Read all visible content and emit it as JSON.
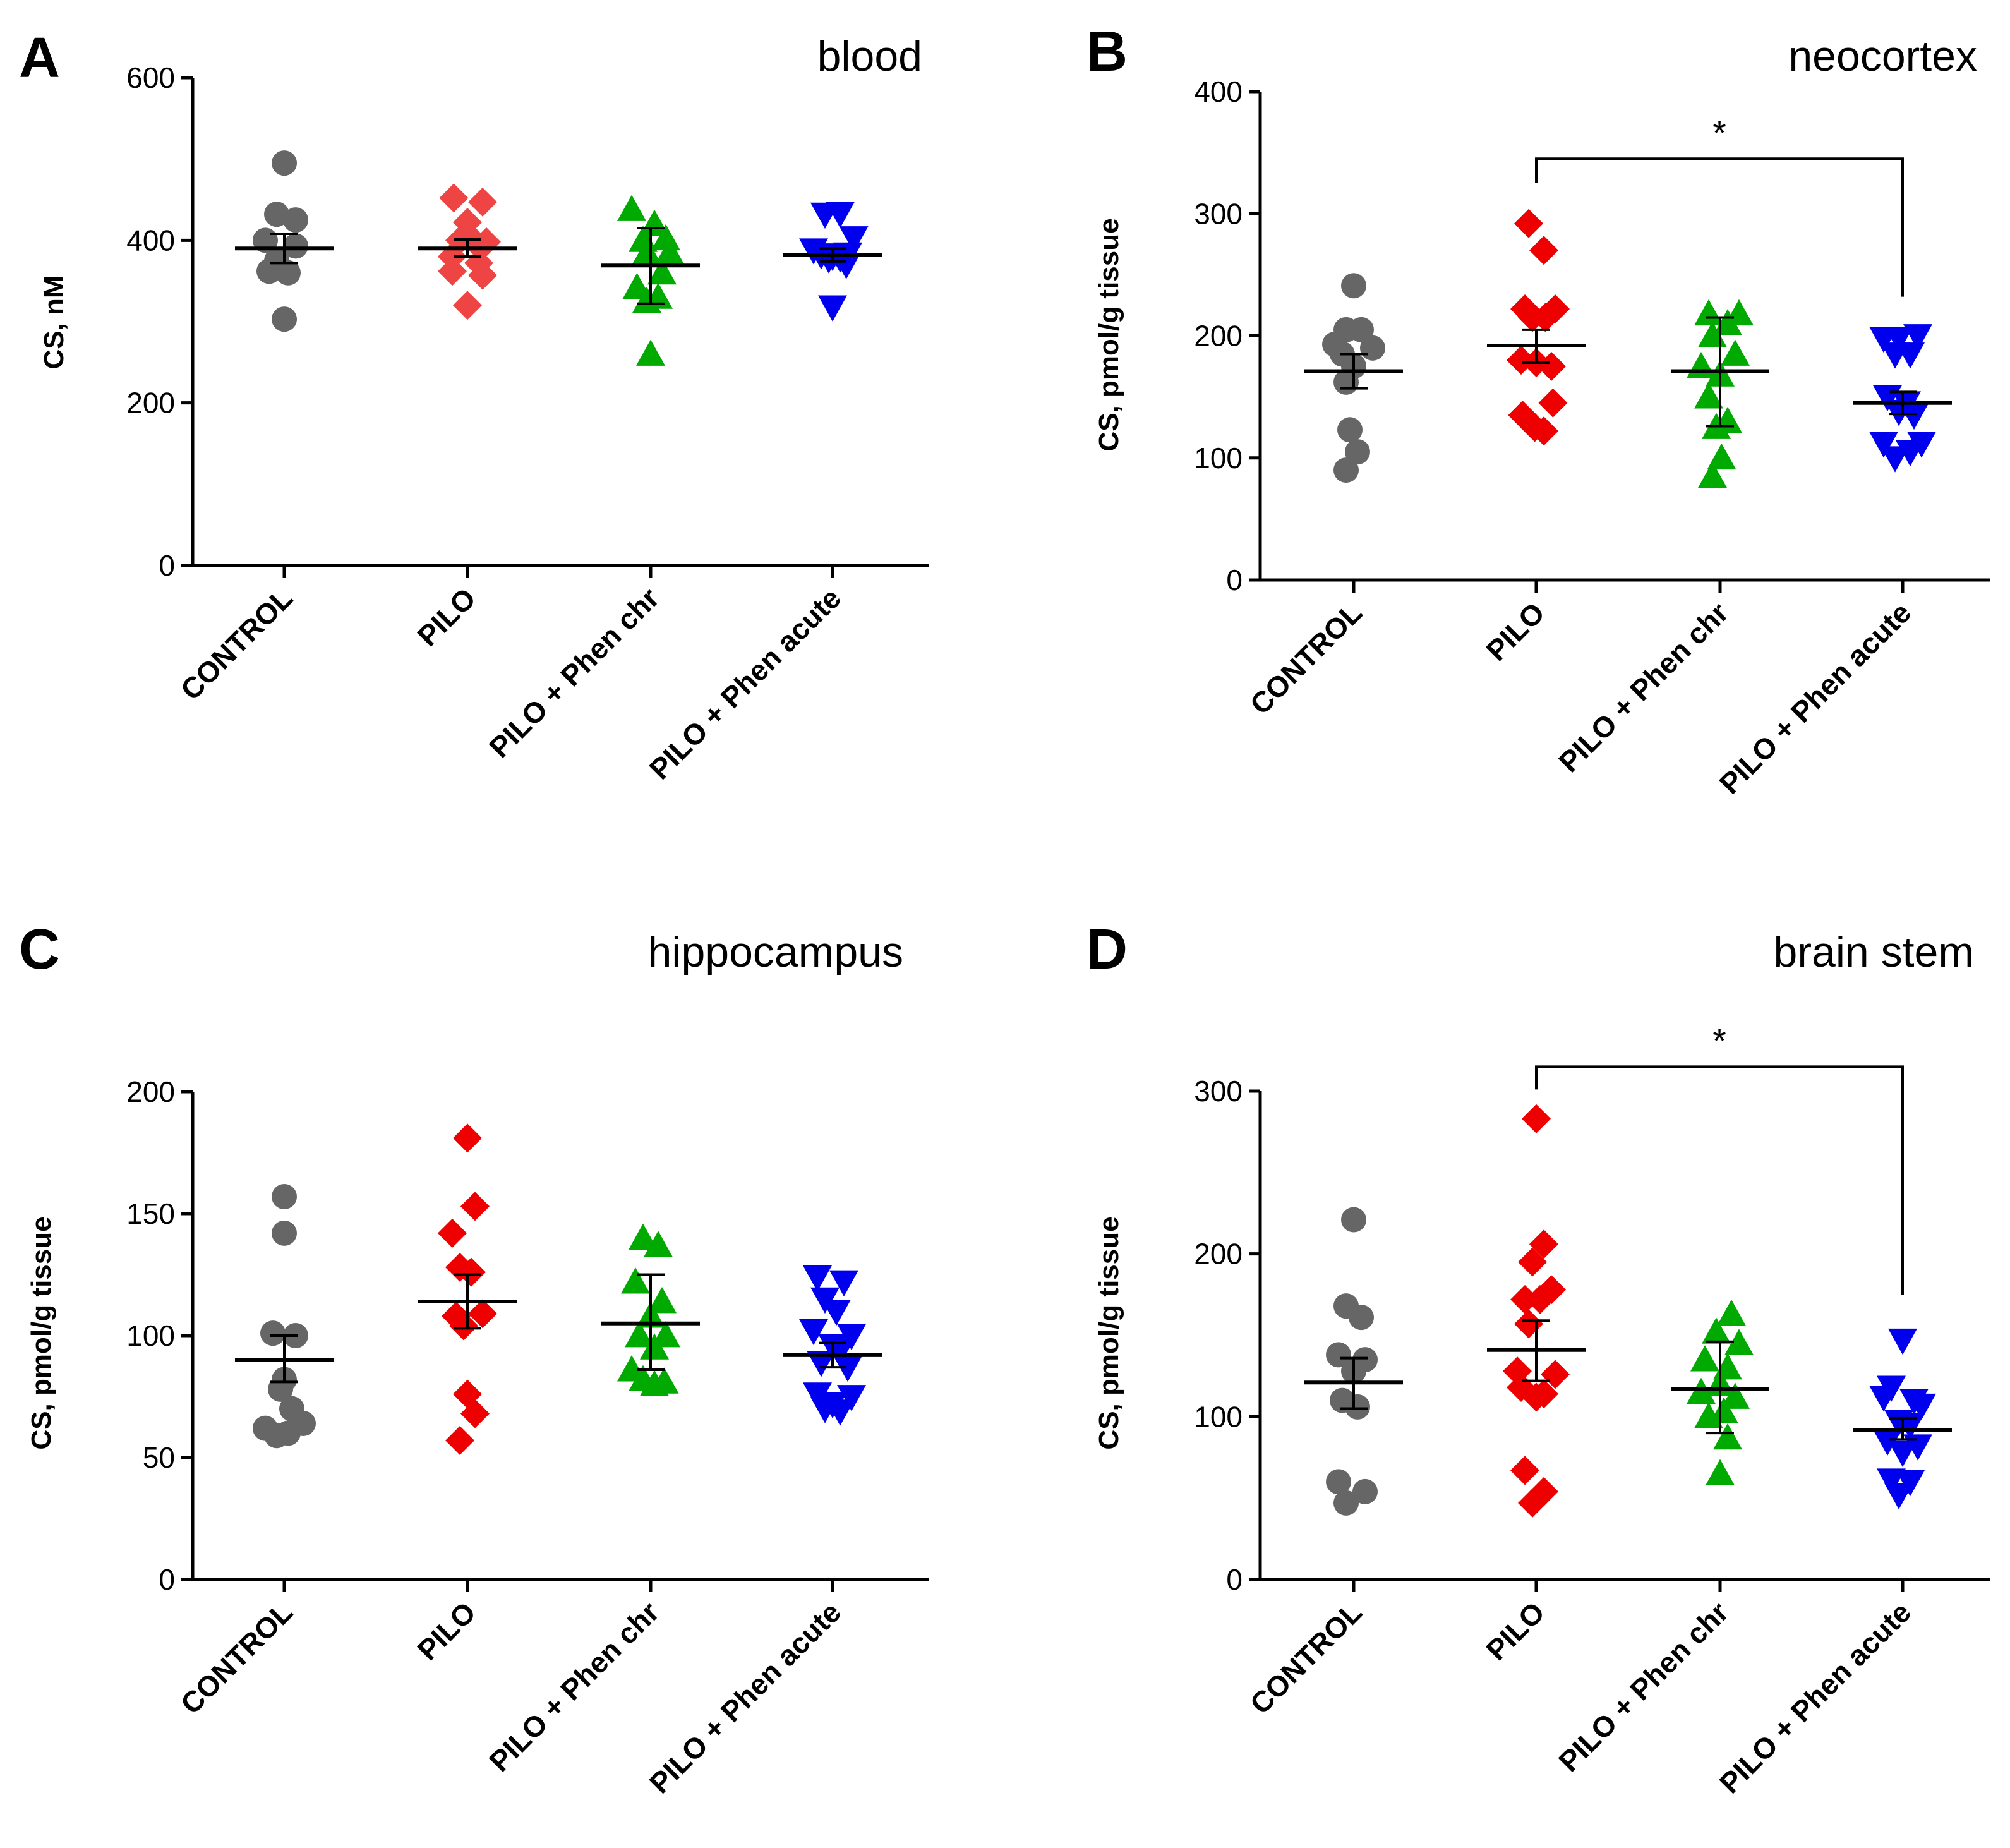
{
  "chart_data": [
    {
      "panel": "A",
      "title": "blood",
      "type": "scatter",
      "ylabel": "CS, nM",
      "ylim": [
        0,
        600
      ],
      "yticks": [
        0,
        200,
        400,
        600
      ],
      "categories": [
        "CONTROL",
        "PILO",
        "PILO + Phen chr",
        "PILO + Phen acute"
      ],
      "series": [
        {
          "name": "CONTROL",
          "color": "#666666",
          "marker": "circle",
          "mean": 390,
          "sem": [
            372,
            408
          ],
          "points": [
            [
              0,
              495
            ],
            [
              -0.1,
              432
            ],
            [
              0.15,
              425
            ],
            [
              -0.25,
              400
            ],
            [
              0.15,
              393
            ],
            [
              -0.1,
              375
            ],
            [
              0.05,
              360
            ],
            [
              -0.2,
              362
            ],
            [
              0,
              303
            ]
          ]
        },
        {
          "name": "PILO",
          "color": "#ee4444",
          "marker": "diamond",
          "mean": 390,
          "sem": [
            380,
            401
          ],
          "points": [
            [
              -0.18,
              452
            ],
            [
              0.2,
              447
            ],
            [
              0,
              422
            ],
            [
              -0.1,
              400
            ],
            [
              0.1,
              398
            ],
            [
              0.25,
              398
            ],
            [
              -0.2,
              380
            ],
            [
              0.15,
              372
            ],
            [
              -0.2,
              362
            ],
            [
              0.2,
              357
            ],
            [
              0,
              320
            ]
          ]
        },
        {
          "name": "PILO + Phen chr",
          "color": "#00aa00",
          "marker": "triangle",
          "mean": 369,
          "sem": [
            322,
            415
          ],
          "points": [
            [
              -0.25,
              438
            ],
            [
              0.05,
              420
            ],
            [
              -0.1,
              400
            ],
            [
              0.2,
              402
            ],
            [
              0.25,
              385
            ],
            [
              -0.05,
              385
            ],
            [
              0.15,
              360
            ],
            [
              -0.18,
              342
            ],
            [
              0.1,
              330
            ],
            [
              -0.05,
              325
            ],
            [
              0,
              260
            ]
          ]
        },
        {
          "name": "PILO + Phen acute",
          "color": "#0000ee",
          "marker": "triangle-down",
          "mean": 382,
          "sem": [
            374,
            390
          ],
          "points": [
            [
              -0.1,
              432
            ],
            [
              0.1,
              433
            ],
            [
              0.28,
              403
            ],
            [
              -0.25,
              388
            ],
            [
              -0.15,
              382
            ],
            [
              0.2,
              383
            ],
            [
              0,
              380
            ],
            [
              0.1,
              378
            ],
            [
              -0.05,
              377
            ],
            [
              0.18,
              370
            ],
            [
              0,
              318
            ]
          ]
        }
      ],
      "significance": null
    },
    {
      "panel": "B",
      "title": "neocortex",
      "type": "scatter",
      "ylabel": "CS, pmol/g tissue",
      "ylim": [
        0,
        400
      ],
      "yticks": [
        0,
        100,
        200,
        300,
        400
      ],
      "categories": [
        "CONTROL",
        "PILO",
        "PILO + Phen chr",
        "PILO + Phen acute"
      ],
      "series": [
        {
          "name": "CONTROL",
          "color": "#666666",
          "marker": "circle",
          "mean": 171,
          "sem": [
            157,
            185
          ],
          "points": [
            [
              0,
              241
            ],
            [
              -0.1,
              205
            ],
            [
              0.1,
              205
            ],
            [
              -0.25,
              193
            ],
            [
              0.25,
              190
            ],
            [
              -0.15,
              185
            ],
            [
              0,
              175
            ],
            [
              -0.1,
              162
            ],
            [
              -0.05,
              123
            ],
            [
              0.05,
              105
            ],
            [
              -0.1,
              90
            ]
          ]
        },
        {
          "name": "PILO",
          "color": "#ee0000",
          "marker": "diamond",
          "mean": 192,
          "sem": [
            178,
            205
          ],
          "points": [
            [
              -0.1,
              292
            ],
            [
              0.1,
              270
            ],
            [
              -0.15,
              222
            ],
            [
              0.25,
              222
            ],
            [
              -0.05,
              215
            ],
            [
              0.12,
              215
            ],
            [
              -0.2,
              180
            ],
            [
              0.2,
              175
            ],
            [
              0,
              178
            ],
            [
              -0.18,
              135
            ],
            [
              0.22,
              145
            ],
            [
              -0.02,
              125
            ],
            [
              0.1,
              122
            ]
          ]
        },
        {
          "name": "PILO + Phen chr",
          "color": "#00aa00",
          "marker": "triangle",
          "mean": 171,
          "sem": [
            126,
            215
          ],
          "points": [
            [
              -0.15,
              218
            ],
            [
              0.25,
              218
            ],
            [
              0.1,
              210
            ],
            [
              -0.1,
              200
            ],
            [
              0.2,
              185
            ],
            [
              -0.25,
              175
            ],
            [
              0,
              168
            ],
            [
              -0.15,
              150
            ],
            [
              0.1,
              130
            ],
            [
              -0.05,
              125
            ],
            [
              0.02,
              100
            ],
            [
              -0.1,
              85
            ]
          ]
        },
        {
          "name": "PILO + Phen acute",
          "color": "#0000ee",
          "marker": "triangle-down",
          "mean": 145,
          "sem": [
            136,
            154
          ],
          "points": [
            [
              -0.25,
              198
            ],
            [
              -0.05,
              198
            ],
            [
              0.2,
              200
            ],
            [
              0.1,
              185
            ],
            [
              -0.1,
              185
            ],
            [
              -0.2,
              150
            ],
            [
              0.05,
              145
            ],
            [
              -0.05,
              138
            ],
            [
              0.15,
              135
            ],
            [
              0.25,
              112
            ],
            [
              -0.25,
              112
            ],
            [
              0.1,
              105
            ],
            [
              -0.1,
              100
            ]
          ]
        }
      ],
      "significance": {
        "label": "*",
        "from": 1,
        "to": 3,
        "y": 345,
        "drop_left": 325,
        "drop_right": 232
      }
    },
    {
      "panel": "C",
      "title": "hippocampus",
      "type": "scatter",
      "ylabel": "CS, pmol/g tissue",
      "ylim": [
        0,
        200
      ],
      "yticks": [
        0,
        50,
        100,
        150,
        200
      ],
      "categories": [
        "CONTROL",
        "PILO",
        "PILO + Phen chr",
        "PILO + Phen acute"
      ],
      "series": [
        {
          "name": "CONTROL",
          "color": "#666666",
          "marker": "circle",
          "mean": 90,
          "sem": [
            81,
            100
          ],
          "points": [
            [
              0,
              157
            ],
            [
              0,
              142
            ],
            [
              -0.15,
              101
            ],
            [
              0.15,
              100
            ],
            [
              0,
              82
            ],
            [
              -0.05,
              78
            ],
            [
              0.1,
              70
            ],
            [
              -0.25,
              62
            ],
            [
              0.25,
              64
            ],
            [
              -0.1,
              59
            ],
            [
              0.05,
              60
            ]
          ]
        },
        {
          "name": "PILO",
          "color": "#ee0000",
          "marker": "diamond",
          "mean": 114,
          "sem": [
            103,
            125
          ],
          "points": [
            [
              0,
              181
            ],
            [
              0.1,
              153
            ],
            [
              -0.2,
              142
            ],
            [
              -0.1,
              128
            ],
            [
              0.05,
              126
            ],
            [
              0.2,
              109
            ],
            [
              -0.15,
              108
            ],
            [
              -0.05,
              104
            ],
            [
              0,
              76
            ],
            [
              0.1,
              68
            ],
            [
              -0.1,
              57
            ]
          ]
        },
        {
          "name": "PILO + Phen chr",
          "color": "#00aa00",
          "marker": "triangle",
          "mean": 105,
          "sem": [
            86,
            125
          ],
          "points": [
            [
              -0.1,
              140
            ],
            [
              0.1,
              137
            ],
            [
              -0.2,
              122
            ],
            [
              0.15,
              114
            ],
            [
              0,
              108
            ],
            [
              0.2,
              100
            ],
            [
              -0.15,
              100
            ],
            [
              0.05,
              95
            ],
            [
              -0.25,
              86
            ],
            [
              -0.1,
              82
            ],
            [
              0.05,
              80
            ],
            [
              0.18,
              81
            ]
          ]
        },
        {
          "name": "PILO + Phen acute",
          "color": "#0000ee",
          "marker": "triangle-down",
          "mean": 92,
          "sem": [
            87,
            97
          ],
          "points": [
            [
              -0.2,
              124
            ],
            [
              0.15,
              122
            ],
            [
              -0.1,
              115
            ],
            [
              0.05,
              110
            ],
            [
              -0.25,
              102
            ],
            [
              0.25,
              100
            ],
            [
              0,
              96
            ],
            [
              0.1,
              94
            ],
            [
              -0.15,
              89
            ],
            [
              0.2,
              87
            ],
            [
              -0.2,
              76
            ],
            [
              0.25,
              75
            ],
            [
              0,
              72
            ],
            [
              -0.1,
              70
            ],
            [
              0.1,
              69
            ]
          ]
        }
      ],
      "significance": null
    },
    {
      "panel": "D",
      "title": "brain stem",
      "type": "scatter",
      "ylabel": "CS, pmol/g tissue",
      "ylim": [
        0,
        300
      ],
      "yticks": [
        0,
        100,
        200,
        300
      ],
      "categories": [
        "CONTROL",
        "PILO",
        "PILO + Phen chr",
        "PILO + Phen acute"
      ],
      "series": [
        {
          "name": "CONTROL",
          "color": "#666666",
          "marker": "circle",
          "mean": 121,
          "sem": [
            105,
            136
          ],
          "points": [
            [
              0,
              221
            ],
            [
              -0.1,
              168
            ],
            [
              0.1,
              161
            ],
            [
              -0.2,
              138
            ],
            [
              0.15,
              135
            ],
            [
              0,
              128
            ],
            [
              -0.15,
              110
            ],
            [
              0.05,
              106
            ],
            [
              -0.2,
              60
            ],
            [
              0.15,
              54
            ],
            [
              -0.1,
              47
            ]
          ]
        },
        {
          "name": "PILO",
          "color": "#ee0000",
          "marker": "diamond",
          "mean": 141,
          "sem": [
            122,
            159
          ],
          "points": [
            [
              0,
              283
            ],
            [
              0.1,
              206
            ],
            [
              -0.05,
              195
            ],
            [
              -0.15,
              172
            ],
            [
              0.2,
              178
            ],
            [
              0.05,
              172
            ],
            [
              -0.1,
              157
            ],
            [
              -0.25,
              128
            ],
            [
              0.25,
              126
            ],
            [
              -0.2,
              118
            ],
            [
              0.1,
              114
            ],
            [
              0,
              112
            ],
            [
              -0.15,
              67
            ],
            [
              0.1,
              54
            ],
            [
              -0.05,
              47
            ]
          ]
        },
        {
          "name": "PILO + Phen chr",
          "color": "#00aa00",
          "marker": "triangle",
          "mean": 117,
          "sem": [
            90,
            146
          ],
          "points": [
            [
              0.15,
              163
            ],
            [
              -0.05,
              152
            ],
            [
              0.25,
              145
            ],
            [
              -0.2,
              135
            ],
            [
              0.1,
              130
            ],
            [
              0,
              120
            ],
            [
              -0.25,
              115
            ],
            [
              0.2,
              112
            ],
            [
              0.05,
              103
            ],
            [
              -0.15,
              100
            ],
            [
              0.1,
              87
            ],
            [
              0,
              65
            ]
          ]
        },
        {
          "name": "PILO + Phen acute",
          "color": "#0000ee",
          "marker": "triangle-down",
          "mean": 92,
          "sem": [
            86,
            99
          ],
          "points": [
            [
              0,
              147
            ],
            [
              -0.15,
              118
            ],
            [
              -0.25,
              112
            ],
            [
              0.15,
              110
            ],
            [
              0.25,
              107
            ],
            [
              -0.05,
              97
            ],
            [
              0.1,
              95
            ],
            [
              -0.2,
              85
            ],
            [
              0.2,
              82
            ],
            [
              0,
              78
            ],
            [
              -0.15,
              61
            ],
            [
              0.1,
              60
            ],
            [
              -0.05,
              52
            ]
          ]
        }
      ],
      "significance": {
        "label": "*",
        "from": 1,
        "to": 3,
        "y": 315,
        "drop_left": 301,
        "drop_right": 175
      }
    }
  ]
}
